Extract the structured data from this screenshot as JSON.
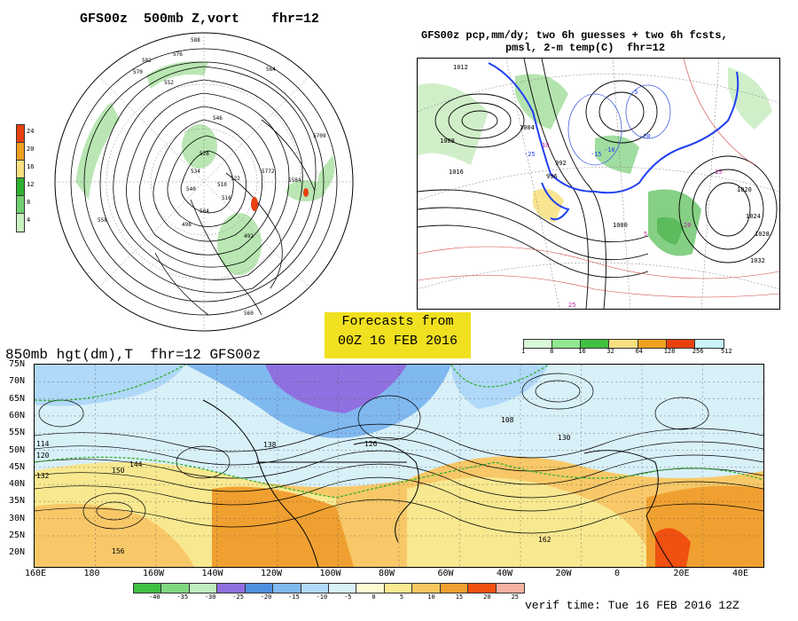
{
  "titles": {
    "z500": "GFS00z  500mb Z,vort    fhr=12",
    "pcp_line1": "GFS00z pcp,mm/dy; two 6h guesses + two 6h fcsts,",
    "pcp_line2": "pmsl, 2-m temp(C)  fhr=12",
    "h850": "850mb hgt(dm),T  fhr=12 GFS00z",
    "verif": "verif time: Tue 16 FEB 2016 12Z"
  },
  "banner": {
    "line1": "Forecasts from",
    "line2": "00Z 16 FEB 2016"
  },
  "vort_colorbar": {
    "labels": [
      "24",
      "20",
      "16",
      "12",
      "8",
      "4"
    ],
    "colors": [
      "#e84010",
      "#f0a020",
      "#f8e080",
      "#30b030",
      "#70d070",
      "#c8f0c0"
    ]
  },
  "pcp_colorbar": {
    "labels": [
      "1",
      "8",
      "16",
      "32",
      "64",
      "128",
      "256",
      "512"
    ],
    "colors": [
      "#d8f8d8",
      "#90e890",
      "#40c040",
      "#f8e080",
      "#f0a020",
      "#e84010",
      "#c8f4f8"
    ]
  },
  "temp_colorbar": {
    "labels": [
      "-40",
      "-35",
      "-30",
      "-25",
      "-20",
      "-15",
      "-10",
      "-5",
      "0",
      "5",
      "10",
      "15",
      "20",
      "25"
    ],
    "colors": [
      "#40c040",
      "#80d880",
      "#c0ecc0",
      "#9070e0",
      "#5090e0",
      "#80b8f0",
      "#b0d8f8",
      "#d8f0f8",
      "#fffad0",
      "#f8e890",
      "#f8c860",
      "#f0a030",
      "#f05010",
      "#f8b0a0"
    ]
  },
  "z500_labels": [
    "588",
    "576",
    "570",
    "564",
    "582",
    "552",
    "546",
    "528",
    "534",
    "540",
    "516",
    "510",
    "504",
    "498",
    "522",
    "492",
    "558",
    "560",
    "5709",
    "5584",
    "5772"
  ],
  "pcp_labels": [
    "1012",
    "1004",
    "1008",
    "1016",
    "1020",
    "1024",
    "1028",
    "1032",
    "1000",
    "996",
    "992",
    "-10",
    "-5",
    "5",
    "10",
    "15",
    "20",
    "25",
    "-15",
    "-20",
    "-25"
  ],
  "h850_labels": [
    "114",
    "120",
    "132",
    "138",
    "144",
    "150",
    "156",
    "162",
    "126",
    "108",
    "130"
  ],
  "lat_labels": [
    "75N",
    "70N",
    "65N",
    "60N",
    "55N",
    "50N",
    "45N",
    "40N",
    "35N",
    "30N",
    "25N",
    "20N"
  ],
  "lon_labels": [
    "160E",
    "180",
    "160W",
    "140W",
    "120W",
    "100W",
    "80W",
    "60W",
    "40W",
    "20W",
    "0",
    "20E",
    "40E"
  ]
}
